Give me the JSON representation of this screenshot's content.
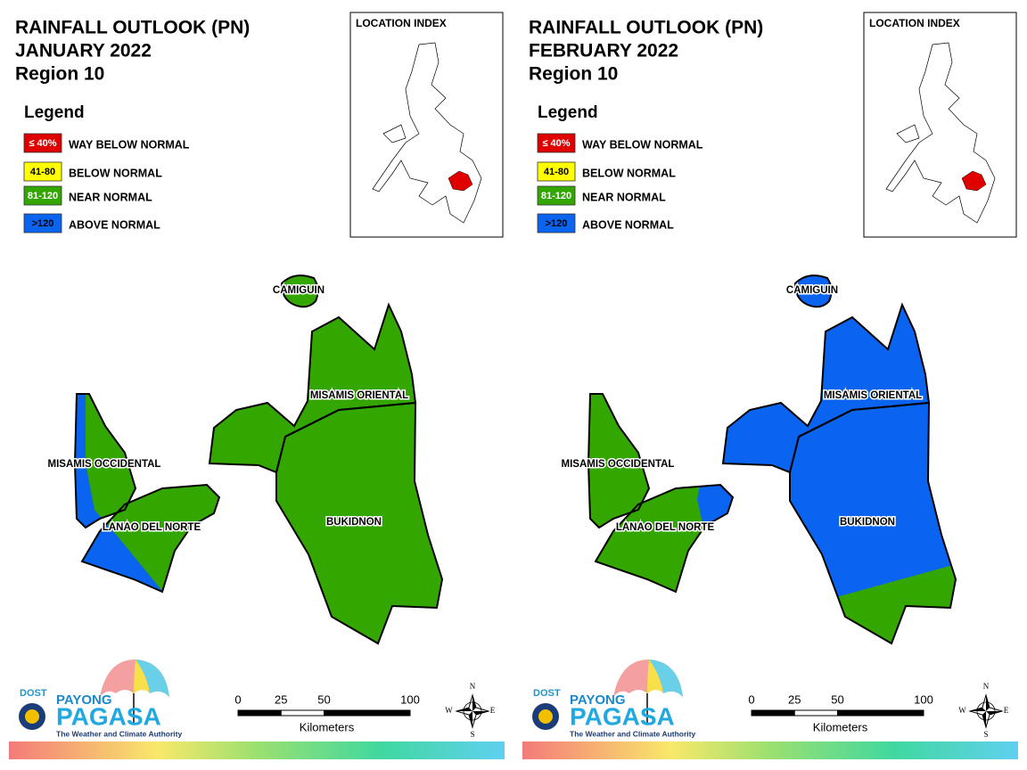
{
  "panels": [
    {
      "title": [
        "RAINFALL OUTLOOK (PN)",
        "JANUARY 2022",
        "Region 10"
      ],
      "legend": {
        "title": "Legend",
        "items": [
          {
            "swatch": "≤ 40%",
            "label": "WAY BELOW NORMAL",
            "color": "#e00000"
          },
          {
            "swatch": "41-80",
            "label": "BELOW NORMAL",
            "color": "#ffff00"
          },
          {
            "swatch": "81-120",
            "label": "NEAR NORMAL",
            "color": "#33a600"
          },
          {
            "swatch": ">120",
            "label": "ABOVE NORMAL",
            "color": "#0a64f0"
          }
        ]
      },
      "location_index": "LOCATION INDEX",
      "provinces": [
        "CAMIGUIN",
        "MISAMIS ORIENTAL",
        "MISAMIS OCCIDENTAL",
        "LANAO DEL NORTE",
        "BUKIDNON"
      ],
      "scale": {
        "ticks": [
          0,
          25,
          50,
          100
        ],
        "unit": "Kilometers"
      },
      "compass": [
        "N",
        "E",
        "S",
        "W"
      ],
      "logo": {
        "agency": "DOST",
        "brand_top": "PAYONG",
        "brand": "PAGASA",
        "tagline": "The Weather and Climate Authority"
      }
    },
    {
      "title": [
        "RAINFALL OUTLOOK (PN)",
        "FEBRUARY 2022",
        "Region 10"
      ],
      "legend": {
        "title": "Legend",
        "items": [
          {
            "swatch": "≤ 40%",
            "label": "WAY BELOW NORMAL",
            "color": "#e00000"
          },
          {
            "swatch": "41-80",
            "label": "BELOW NORMAL",
            "color": "#ffff00"
          },
          {
            "swatch": "81-120",
            "label": "NEAR NORMAL",
            "color": "#33a600"
          },
          {
            "swatch": ">120",
            "label": "ABOVE NORMAL",
            "color": "#0a64f0"
          }
        ]
      },
      "location_index": "LOCATION INDEX",
      "provinces": [
        "CAMIGUIN",
        "MISAMIS ORIENTAL",
        "MISAMIS OCCIDENTAL",
        "LANAO DEL NORTE",
        "BUKIDNON"
      ],
      "scale": {
        "ticks": [
          0,
          25,
          50,
          100
        ],
        "unit": "Kilometers"
      },
      "compass": [
        "N",
        "E",
        "S",
        "W"
      ],
      "logo": {
        "agency": "DOST",
        "brand_top": "PAYONG",
        "brand": "PAGASA",
        "tagline": "The Weather and Climate Authority"
      }
    }
  ]
}
